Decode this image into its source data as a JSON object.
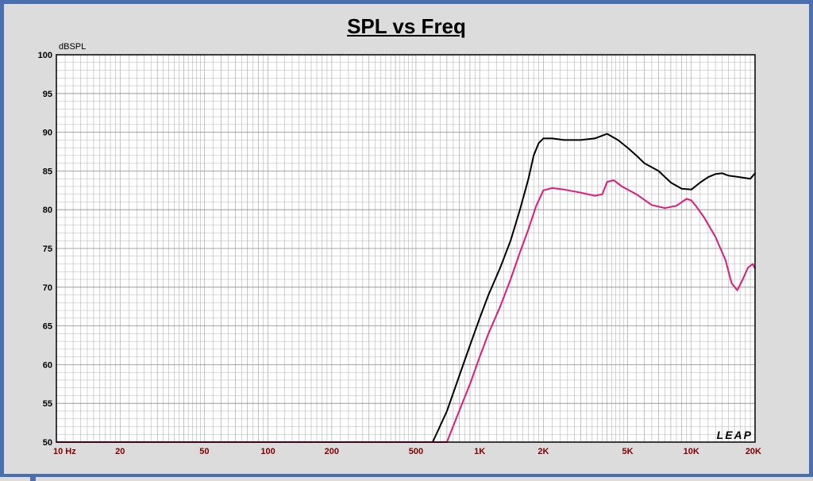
{
  "chart_data": {
    "type": "line",
    "title": "SPL vs Freq",
    "ylabel": "dBSPL",
    "xlabel": "",
    "x_scale": "log",
    "xlim": [
      10,
      20000
    ],
    "ylim": [
      50,
      100
    ],
    "y_ticks": [
      50,
      55,
      60,
      65,
      70,
      75,
      80,
      85,
      90,
      95,
      100
    ],
    "x_tick_values": [
      10,
      20,
      50,
      100,
      200,
      500,
      1000,
      2000,
      5000,
      10000,
      20000
    ],
    "x_tick_labels": [
      "10  Hz",
      "20",
      "50",
      "100",
      "200",
      "500",
      "1K",
      "2K",
      "5K",
      "10K",
      "20K"
    ],
    "grid": true,
    "watermark": "LEAP",
    "colors": {
      "background": "#dcdcdc",
      "plot_bg": "#ffffff",
      "grid": "#b4b4b4",
      "tick_label": "#800000",
      "border": "#4a6fb0"
    },
    "series": [
      {
        "color": "#000000",
        "points": [
          [
            10,
            50
          ],
          [
            600,
            50
          ],
          [
            700,
            54
          ],
          [
            800,
            58.5
          ],
          [
            900,
            62.5
          ],
          [
            1000,
            66
          ],
          [
            1100,
            69
          ],
          [
            1250,
            72.5
          ],
          [
            1400,
            76
          ],
          [
            1550,
            80
          ],
          [
            1700,
            84
          ],
          [
            1800,
            87
          ],
          [
            1900,
            88.6
          ],
          [
            2000,
            89.2
          ],
          [
            2200,
            89.2
          ],
          [
            2500,
            89
          ],
          [
            3000,
            89
          ],
          [
            3500,
            89.2
          ],
          [
            4000,
            89.8
          ],
          [
            4500,
            89
          ],
          [
            5000,
            88
          ],
          [
            5500,
            87
          ],
          [
            6000,
            86
          ],
          [
            7000,
            85
          ],
          [
            8000,
            83.5
          ],
          [
            9000,
            82.7
          ],
          [
            10000,
            82.6
          ],
          [
            11000,
            83.5
          ],
          [
            12000,
            84.2
          ],
          [
            13000,
            84.6
          ],
          [
            14000,
            84.7
          ],
          [
            15000,
            84.4
          ],
          [
            17000,
            84.2
          ],
          [
            19000,
            84
          ],
          [
            20000,
            84.7
          ],
          [
            20500,
            84.6
          ]
        ]
      },
      {
        "color": "#e0197d",
        "points": [
          [
            10,
            50
          ],
          [
            700,
            50
          ],
          [
            800,
            54
          ],
          [
            900,
            57.5
          ],
          [
            1000,
            61
          ],
          [
            1100,
            64
          ],
          [
            1250,
            67.5
          ],
          [
            1400,
            71
          ],
          [
            1550,
            74.5
          ],
          [
            1700,
            77.5
          ],
          [
            1850,
            80.5
          ],
          [
            2000,
            82.5
          ],
          [
            2200,
            82.8
          ],
          [
            2500,
            82.6
          ],
          [
            3000,
            82.2
          ],
          [
            3500,
            81.8
          ],
          [
            3800,
            82
          ],
          [
            4000,
            83.6
          ],
          [
            4300,
            83.8
          ],
          [
            4700,
            83
          ],
          [
            5500,
            82
          ],
          [
            6500,
            80.6
          ],
          [
            7500,
            80.2
          ],
          [
            8500,
            80.5
          ],
          [
            9500,
            81.4
          ],
          [
            10000,
            81.2
          ],
          [
            10500,
            80.5
          ],
          [
            11500,
            79
          ],
          [
            13000,
            76.5
          ],
          [
            14500,
            73.5
          ],
          [
            15500,
            70.5
          ],
          [
            16500,
            69.6
          ],
          [
            17500,
            71
          ],
          [
            18500,
            72.5
          ],
          [
            19500,
            73
          ],
          [
            20500,
            72.4
          ]
        ]
      }
    ]
  }
}
